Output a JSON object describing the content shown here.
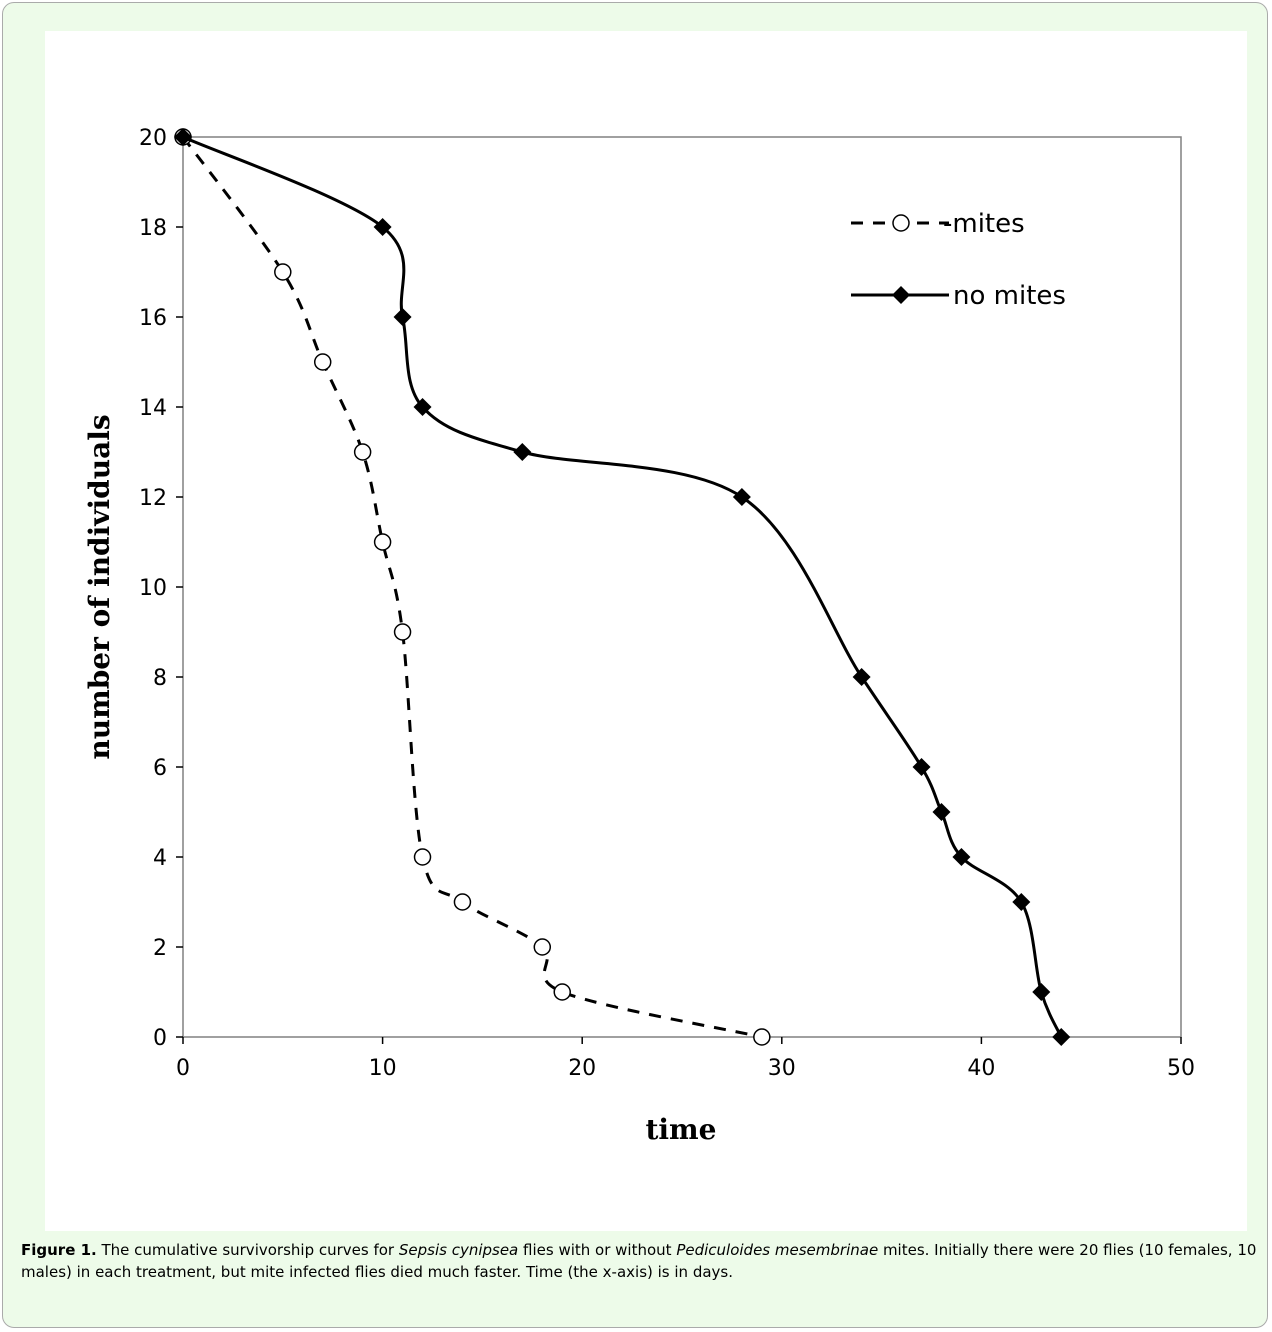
{
  "chart_data": {
    "type": "line",
    "xlabel": "time",
    "ylabel": "number of individuals",
    "xlim": [
      0,
      50
    ],
    "ylim": [
      0,
      20
    ],
    "x_ticks": [
      0,
      10,
      20,
      30,
      40,
      50
    ],
    "y_ticks": [
      0,
      2,
      4,
      6,
      8,
      10,
      12,
      14,
      16,
      18,
      20
    ],
    "grid": false,
    "legend_position": "top-right",
    "series": [
      {
        "name": "-mites",
        "style": "dashed",
        "marker": "open-circle",
        "color": "#000000",
        "x": [
          0,
          5,
          7,
          9,
          10,
          11,
          12,
          14,
          18,
          19,
          29
        ],
        "y": [
          20,
          17,
          15,
          13,
          11,
          9,
          4,
          3,
          2,
          1,
          0
        ]
      },
      {
        "name": "no mites",
        "style": "solid",
        "marker": "filled-diamond",
        "color": "#000000",
        "x": [
          0,
          10,
          11,
          12,
          17,
          28,
          34,
          37,
          38,
          39,
          42,
          43,
          44
        ],
        "y": [
          20,
          18,
          16,
          14,
          13,
          12,
          8,
          6,
          5,
          4,
          3,
          1,
          0
        ]
      }
    ]
  },
  "caption": {
    "label": "Figure 1.",
    "text_1": " The cumulative survivorship curves for ",
    "species_1": "Sepsis cynipsea",
    "text_2": " flies with or without ",
    "species_2": "Pediculoides mesembrinae",
    "text_3": " mites. Initially there were 20 flies (10 females, 10 males) in each treatment, but mite infected flies died much faster. Time (the x-axis) is in days."
  },
  "colors": {
    "background": "#edfbe9",
    "plot_area": "#ffffff",
    "ink": "#000000"
  }
}
